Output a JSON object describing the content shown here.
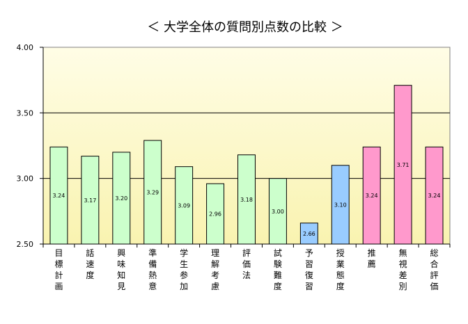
{
  "chart_data": {
    "type": "bar",
    "title": "＜ 大学全体の質問別点数の比較 ＞",
    "xlabel": "",
    "ylabel": "",
    "ylim": [
      2.5,
      4.0
    ],
    "yticks": [
      "2.50",
      "3.00",
      "3.50",
      "4.00"
    ],
    "grid": true,
    "legend": "none",
    "categories": [
      "目標計画",
      "話速度",
      "興味知見",
      "準備熱意",
      "学生参加",
      "理解考慮",
      "評価法",
      "試験難度",
      "予習復習",
      "授業態度",
      "推薦",
      "無視差別",
      "総合評価"
    ],
    "values": [
      3.24,
      3.17,
      3.2,
      3.29,
      3.09,
      2.96,
      3.18,
      3.0,
      2.66,
      3.1,
      3.24,
      3.71,
      3.24
    ],
    "value_labels": [
      "3.24",
      "3.17",
      "3.20",
      "3.29",
      "3.09",
      "2.96",
      "3.18",
      "3.00",
      "2.66",
      "3.10",
      "3.24",
      "3.71",
      "3.24"
    ],
    "bar_colors": [
      "#ccffcc",
      "#ccffcc",
      "#ccffcc",
      "#ccffcc",
      "#ccffcc",
      "#ccffcc",
      "#ccffcc",
      "#ccffcc",
      "#99ccff",
      "#99ccff",
      "#ff99cc",
      "#ff99cc",
      "#ff99cc"
    ],
    "plot_background_top": "#fffde6",
    "plot_background_bottom": "#f9f3b0"
  }
}
